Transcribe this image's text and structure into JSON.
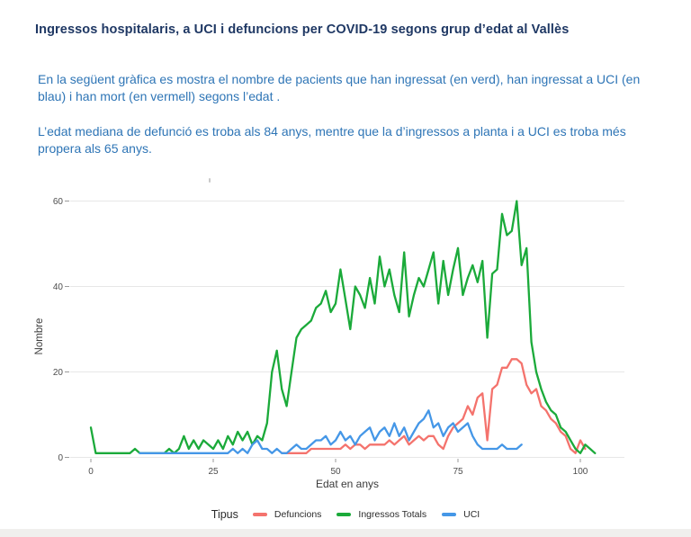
{
  "title": {
    "text": "Ingressos hospitalaris, a UCI i defuncions per COVID-19 segons grup d’edat al Vallès",
    "color": "#1f3864"
  },
  "body": {
    "text_color": "#2e75b6"
  },
  "paragraphs": [
    {
      "text": "En la següent gràfica es mostra el nombre de pacients que han ingressat (en verd), han ingressat a UCI (en blau) i han mort (en vermell) segons l’edat ."
    },
    {
      "text": "L’edat mediana de defunció es troba als 84 anys, mentre que la d’ingressos a planta i a UCI es troba més propera als 65 anys."
    }
  ],
  "chart_data": {
    "type": "line",
    "title": "",
    "xlabel": "Edat en anys",
    "ylabel": "Nombre",
    "legend_title": "Tipus",
    "legend_position": "bottom",
    "grid": "horizontal-major-only",
    "x_ticks": [
      0,
      25,
      50,
      75,
      100
    ],
    "y_ticks": [
      0,
      20,
      40,
      60
    ],
    "xlim": [
      -4,
      109
    ],
    "ylim": [
      0,
      62
    ],
    "x_unit": "anys",
    "tick_label_color": "#4d4d4d",
    "gridline_color": "#e7e7e7",
    "series": [
      {
        "name": "Defuncions",
        "color": "#f4736d",
        "age_start": 39,
        "values": [
          1,
          1,
          1,
          1,
          1,
          1,
          2,
          2,
          2,
          2,
          2,
          2,
          2,
          3,
          2,
          3,
          3,
          2,
          3,
          3,
          3,
          3,
          4,
          3,
          4,
          5,
          3,
          4,
          5,
          4,
          5,
          5,
          3,
          2,
          5,
          7,
          8,
          9,
          12,
          10,
          14,
          15,
          4,
          16,
          17,
          21,
          21,
          23,
          23,
          22,
          17,
          15,
          16,
          12,
          11,
          9,
          8,
          6,
          5,
          2,
          1,
          4,
          2
        ]
      },
      {
        "name": "Ingressos Totals",
        "color": "#1baa3a",
        "age_start": 0,
        "values": [
          7,
          1,
          1,
          1,
          1,
          1,
          1,
          1,
          1,
          2,
          1,
          1,
          1,
          1,
          1,
          1,
          2,
          1,
          2,
          5,
          2,
          4,
          2,
          4,
          3,
          2,
          4,
          2,
          5,
          3,
          6,
          4,
          6,
          3,
          5,
          4,
          8,
          20,
          25,
          16,
          12,
          20,
          28,
          30,
          31,
          32,
          35,
          36,
          39,
          34,
          36,
          44,
          37,
          30,
          40,
          38,
          35,
          42,
          36,
          47,
          40,
          44,
          38,
          34,
          48,
          33,
          38,
          42,
          40,
          44,
          48,
          36,
          46,
          38,
          44,
          49,
          38,
          42,
          45,
          41,
          46,
          28,
          43,
          44,
          57,
          52,
          53,
          60,
          45,
          49,
          27,
          20,
          16,
          13,
          11,
          10,
          7,
          6,
          4,
          2,
          1,
          3,
          2,
          1
        ]
      },
      {
        "name": "UCI",
        "color": "#4597e7",
        "age_start": 10,
        "values": [
          1,
          1,
          1,
          1,
          1,
          1,
          1,
          1,
          1,
          1,
          1,
          1,
          1,
          1,
          1,
          1,
          1,
          1,
          1,
          2,
          1,
          2,
          1,
          3,
          4,
          2,
          2,
          1,
          2,
          1,
          1,
          2,
          3,
          2,
          2,
          3,
          4,
          4,
          5,
          3,
          4,
          6,
          4,
          5,
          3,
          5,
          6,
          7,
          4,
          6,
          7,
          5,
          8,
          5,
          7,
          4,
          6,
          8,
          9,
          11,
          7,
          8,
          5,
          7,
          8,
          6,
          7,
          8,
          5,
          3,
          2,
          2,
          2,
          2,
          3,
          2,
          2,
          2,
          3
        ]
      }
    ]
  }
}
